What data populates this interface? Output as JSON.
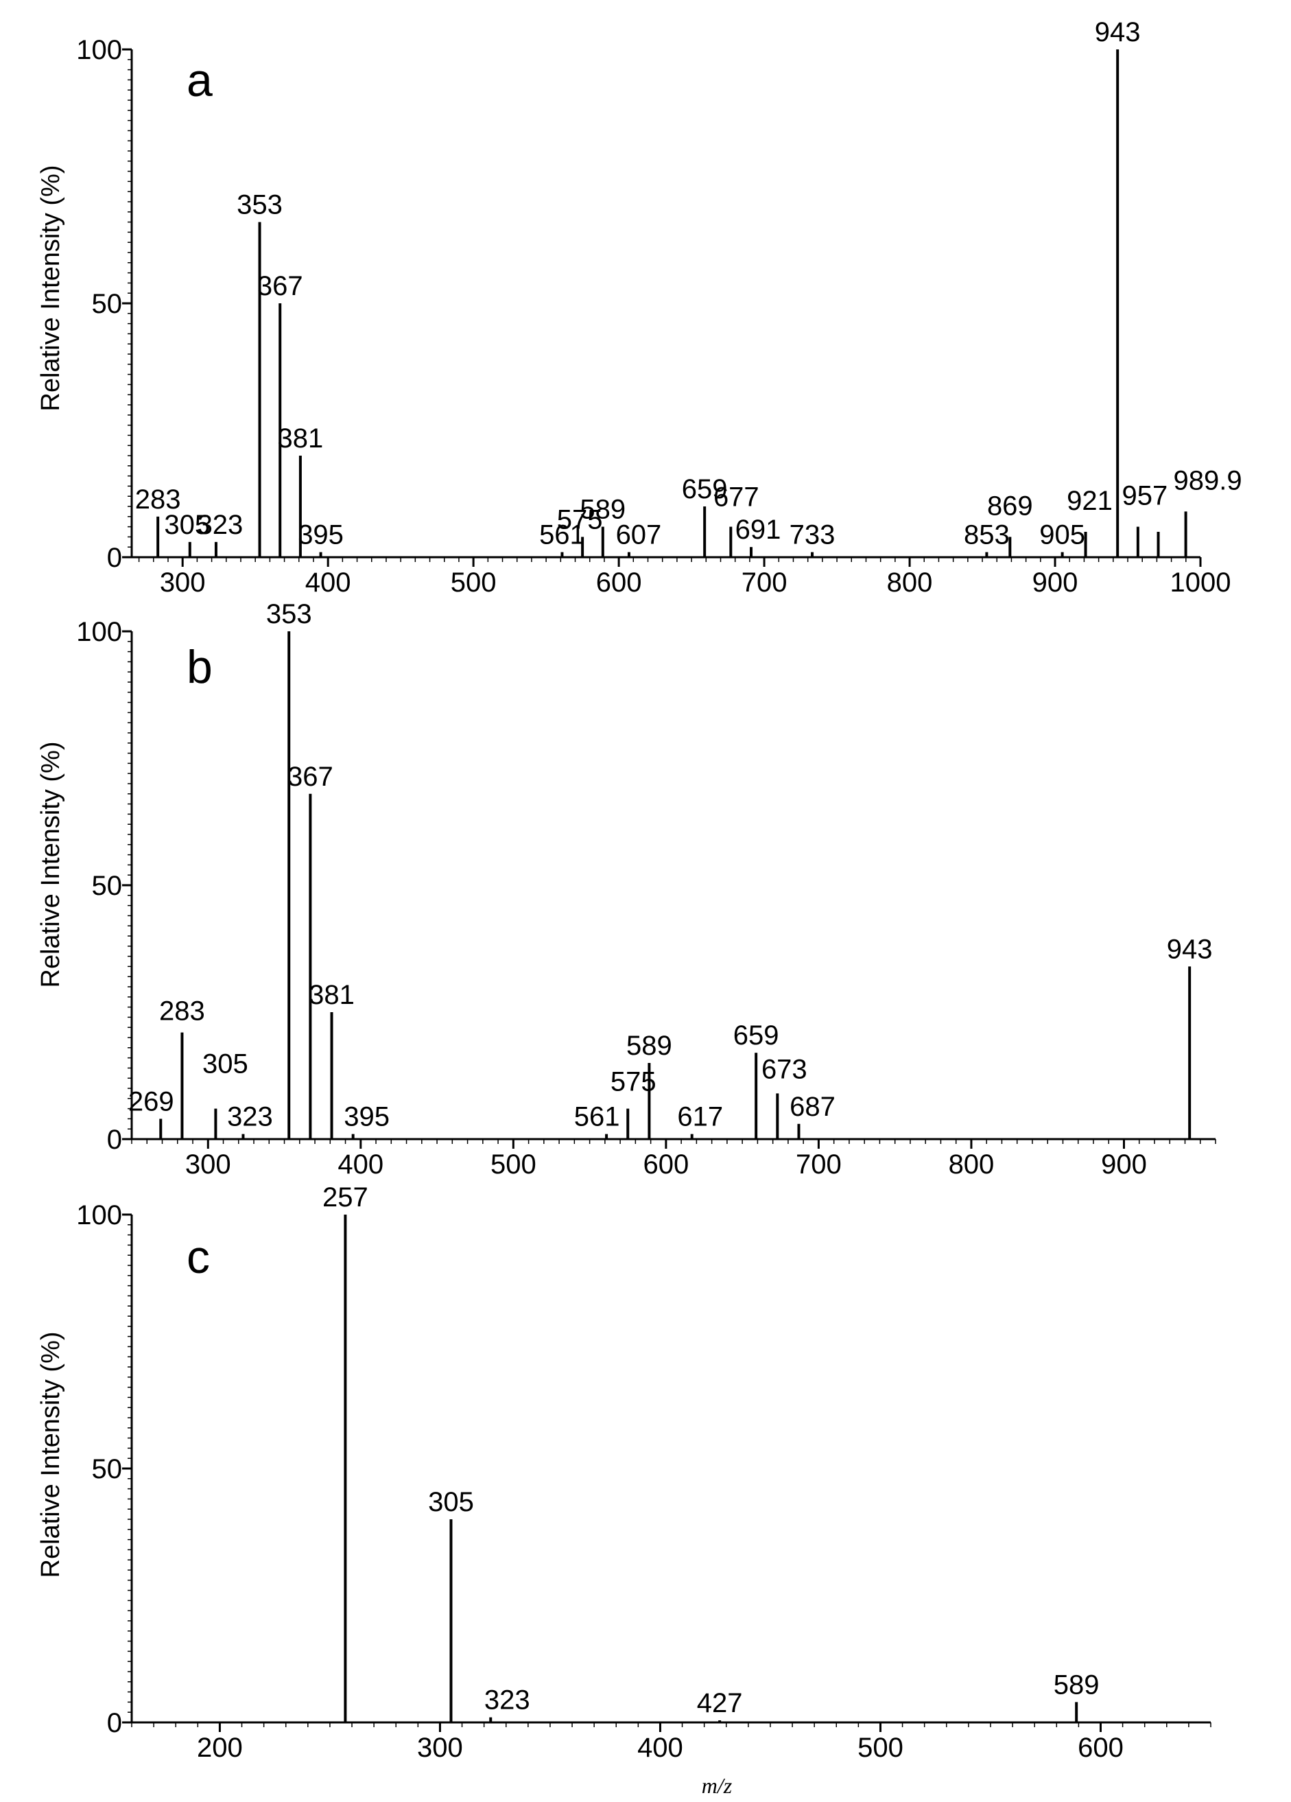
{
  "chart_data": [
    {
      "type": "bar",
      "panel": "a",
      "ylabel": "Relative Intensity (%)",
      "xlabel": "",
      "xlim": [
        265,
        1000
      ],
      "ylim": [
        0,
        100
      ],
      "xticks": [
        300,
        400,
        500,
        600,
        700,
        800,
        900,
        1000
      ],
      "yticks": [
        0,
        50,
        100
      ],
      "peaks": [
        {
          "x": 283,
          "y": 8,
          "label": "283"
        },
        {
          "x": 305,
          "y": 3,
          "label": "305"
        },
        {
          "x": 323,
          "y": 3,
          "label": "323"
        },
        {
          "x": 353,
          "y": 66,
          "label": "353"
        },
        {
          "x": 367,
          "y": 50,
          "label": "367"
        },
        {
          "x": 381,
          "y": 20,
          "label": "381"
        },
        {
          "x": 395,
          "y": 1,
          "label": "395"
        },
        {
          "x": 561,
          "y": 1,
          "label": "561"
        },
        {
          "x": 575,
          "y": 4,
          "label": "575"
        },
        {
          "x": 589,
          "y": 6,
          "label": "589"
        },
        {
          "x": 607,
          "y": 1,
          "label": "607"
        },
        {
          "x": 659,
          "y": 10,
          "label": "659"
        },
        {
          "x": 677,
          "y": 6,
          "label": "677"
        },
        {
          "x": 691,
          "y": 2,
          "label": "691"
        },
        {
          "x": 733,
          "y": 1,
          "label": "733"
        },
        {
          "x": 853,
          "y": 1,
          "label": "853",
          "color": "#ff0000"
        },
        {
          "x": 869,
          "y": 4,
          "label": "869",
          "color": "#ff0000"
        },
        {
          "x": 905,
          "y": 1,
          "label": "905",
          "color": "#ff0000"
        },
        {
          "x": 921,
          "y": 5,
          "label": "921",
          "color": "#ff0000"
        },
        {
          "x": 943,
          "y": 100,
          "label": "943"
        },
        {
          "x": 957,
          "y": 6,
          "label": "957",
          "color": "#ff0000"
        },
        {
          "x": 971,
          "y": 5,
          "label": ""
        },
        {
          "x": 989.9,
          "y": 9,
          "label": "989.9"
        }
      ]
    },
    {
      "type": "bar",
      "panel": "b",
      "ylabel": "Relative Intensity (%)",
      "xlabel": "",
      "xlim": [
        250,
        960
      ],
      "ylim": [
        0,
        100
      ],
      "xticks": [
        300,
        400,
        500,
        600,
        700,
        800,
        900
      ],
      "yticks": [
        0,
        50,
        100
      ],
      "peaks": [
        {
          "x": 269,
          "y": 4,
          "label": "269"
        },
        {
          "x": 283,
          "y": 21,
          "label": "283"
        },
        {
          "x": 305,
          "y": 6,
          "label": "305"
        },
        {
          "x": 323,
          "y": 1,
          "label": "323"
        },
        {
          "x": 353,
          "y": 100,
          "label": "353"
        },
        {
          "x": 367,
          "y": 68,
          "label": "367"
        },
        {
          "x": 381,
          "y": 25,
          "label": "381"
        },
        {
          "x": 395,
          "y": 1,
          "label": "395"
        },
        {
          "x": 561,
          "y": 1,
          "label": "561"
        },
        {
          "x": 575,
          "y": 6,
          "label": "575"
        },
        {
          "x": 589,
          "y": 15,
          "label": "589"
        },
        {
          "x": 617,
          "y": 1,
          "label": "617"
        },
        {
          "x": 659,
          "y": 17,
          "label": "659"
        },
        {
          "x": 673,
          "y": 9,
          "label": "673"
        },
        {
          "x": 687,
          "y": 3,
          "label": "687"
        },
        {
          "x": 943,
          "y": 34,
          "label": "943"
        }
      ]
    },
    {
      "type": "bar",
      "panel": "c",
      "ylabel": "Relative Intensity (%)",
      "xlabel": "m/z",
      "xlim": [
        160,
        650
      ],
      "ylim": [
        0,
        100
      ],
      "xticks": [
        200,
        300,
        400,
        500,
        600
      ],
      "yticks": [
        0,
        50,
        100
      ],
      "peaks": [
        {
          "x": 257,
          "y": 100,
          "label": "257"
        },
        {
          "x": 305,
          "y": 40,
          "label": "305"
        },
        {
          "x": 323,
          "y": 1,
          "label": "323"
        },
        {
          "x": 427,
          "y": 0.3,
          "label": "427"
        },
        {
          "x": 589,
          "y": 4,
          "label": "589"
        }
      ]
    }
  ]
}
